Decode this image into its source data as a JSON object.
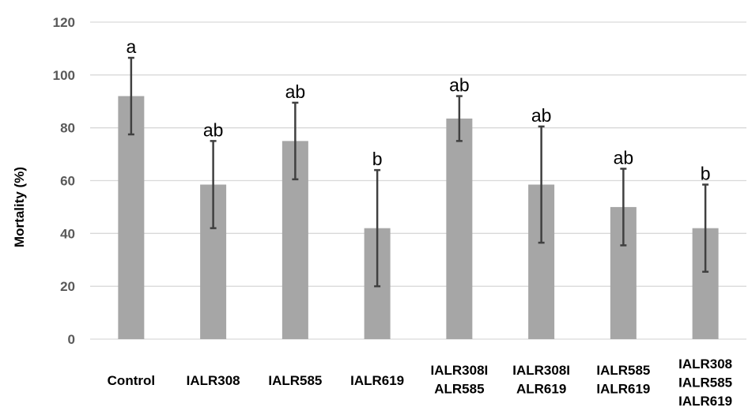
{
  "chart_data": {
    "type": "bar",
    "title": "",
    "xlabel": "",
    "ylabel": "Mortality (%)",
    "ylim": [
      0,
      120
    ],
    "yticks": [
      0,
      20,
      40,
      60,
      80,
      100,
      120
    ],
    "grid": true,
    "categories": [
      [
        "Control"
      ],
      [
        "IALR308"
      ],
      [
        "IALR585"
      ],
      [
        "IALR619"
      ],
      [
        "IALR308I",
        "ALR585"
      ],
      [
        "IALR308I",
        "ALR619"
      ],
      [
        "IALR585",
        "IALR619"
      ],
      [
        "IALR308",
        "IALR585",
        "IALR619"
      ]
    ],
    "values": [
      92,
      58.5,
      75,
      42,
      83.5,
      58.5,
      50,
      42
    ],
    "error_low": [
      77.5,
      42,
      60.5,
      20,
      75,
      36.5,
      35.5,
      25.5
    ],
    "error_high": [
      106.5,
      75,
      89.5,
      64,
      92,
      80.5,
      64.5,
      58.5
    ],
    "significance_letters": [
      "a",
      "ab",
      "ab",
      "b",
      "ab",
      "ab",
      "ab",
      "b"
    ],
    "colors": {
      "bar": "#a6a6a6",
      "error_bar": "#404040",
      "grid": "#d9d9d9"
    }
  }
}
